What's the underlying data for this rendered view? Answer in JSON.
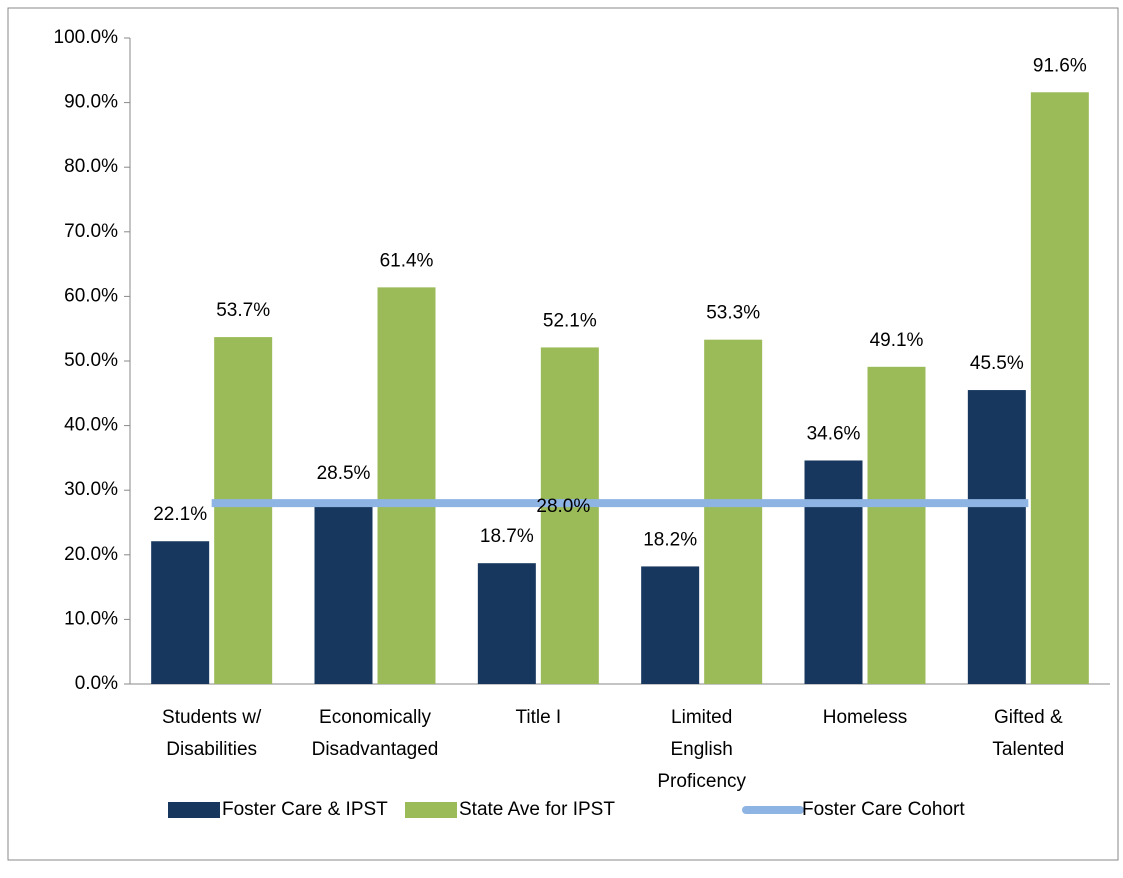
{
  "chart_data": {
    "type": "bar",
    "categories": [
      "Students w/\nDisabilities",
      "Economically\nDisadvantaged",
      "Title I",
      "Limited\nEnglish\nProficency",
      "Homeless",
      "Gifted &\nTalented"
    ],
    "series": [
      {
        "name": "Foster Care & IPST",
        "type": "bar",
        "color": "#17375e",
        "values": [
          22.1,
          28.5,
          18.7,
          18.2,
          34.6,
          45.5
        ],
        "value_labels": [
          "22.1%",
          "28.5%",
          "18.7%",
          "18.2%",
          "34.6%",
          "45.5%"
        ]
      },
      {
        "name": "State Ave  for IPST",
        "type": "bar",
        "color": "#9bbb59",
        "values": [
          53.7,
          61.4,
          52.1,
          53.3,
          49.1,
          91.6
        ],
        "value_labels": [
          "53.7%",
          "61.4%",
          "52.1%",
          "53.3%",
          "49.1%",
          "91.6%"
        ]
      },
      {
        "name": "Foster Care Cohort",
        "type": "line",
        "color": "#8eb4e3",
        "values": [
          28.0,
          28.0,
          28.0,
          28.0,
          28.0,
          28.0
        ],
        "value_labels": [
          null,
          null,
          "28.0%",
          null,
          null,
          null
        ]
      }
    ],
    "ylim": [
      0,
      100
    ],
    "yticks": [
      {
        "value": 0,
        "label": "0.0%"
      },
      {
        "value": 10,
        "label": "10.0%"
      },
      {
        "value": 20,
        "label": "20.0%"
      },
      {
        "value": 30,
        "label": "30.0%"
      },
      {
        "value": 40,
        "label": "40.0%"
      },
      {
        "value": 50,
        "label": "50.0%"
      },
      {
        "value": 60,
        "label": "60.0%"
      },
      {
        "value": 70,
        "label": "70.0%"
      },
      {
        "value": 80,
        "label": "80.0%"
      },
      {
        "value": 90,
        "label": "90.0%"
      },
      {
        "value": 100,
        "label": "100.0%"
      }
    ],
    "grid": false,
    "legend": "bottom"
  }
}
